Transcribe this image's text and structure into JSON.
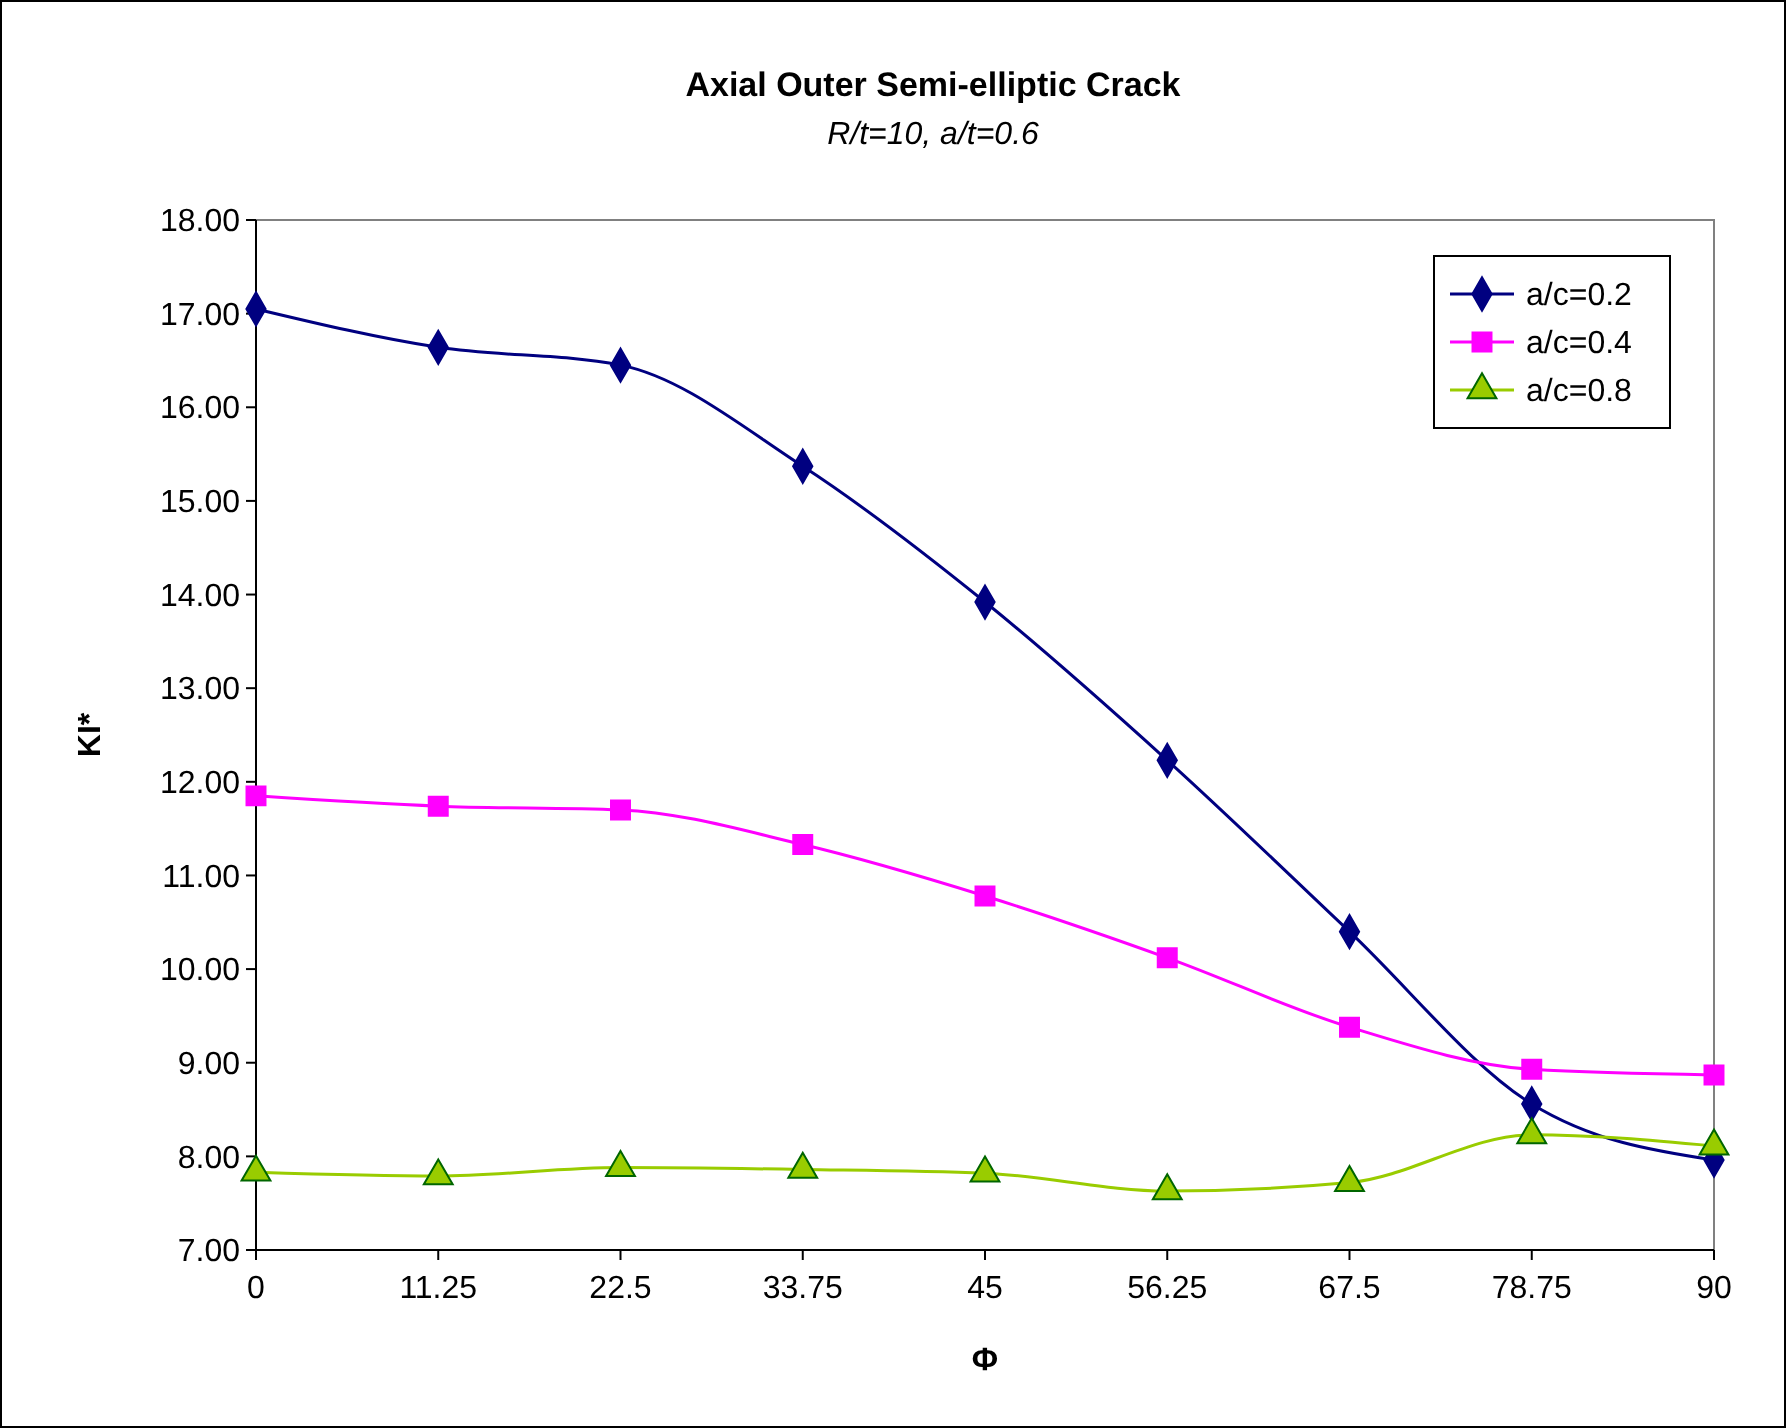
{
  "chart_data": {
    "type": "line",
    "title": "Axial Outer Semi-elliptic Crack",
    "subtitle": "R/t=10, a/t=0.6",
    "xlabel": "Φ",
    "ylabel": "KI*",
    "x": [
      0,
      11.25,
      22.5,
      33.75,
      45,
      56.25,
      67.5,
      78.75,
      90
    ],
    "xlim": [
      0,
      90
    ],
    "xticks": [
      0,
      11.25,
      22.5,
      33.75,
      45,
      56.25,
      67.5,
      78.75,
      90
    ],
    "ylim": [
      7,
      18
    ],
    "yticks": [
      {
        "value": 7,
        "label": "7.00"
      },
      {
        "value": 8,
        "label": "8.00"
      },
      {
        "value": 9,
        "label": "9.00"
      },
      {
        "value": 10,
        "label": "10.00"
      },
      {
        "value": 11,
        "label": "11.00"
      },
      {
        "value": 12,
        "label": "12.00"
      },
      {
        "value": 13,
        "label": "13.00"
      },
      {
        "value": 14,
        "label": "14.00"
      },
      {
        "value": 15,
        "label": "15.00"
      },
      {
        "value": 16,
        "label": "16.00"
      },
      {
        "value": 17,
        "label": "17.00"
      },
      {
        "value": 18,
        "label": "18.00"
      }
    ],
    "grid": false,
    "legend": "top right",
    "series": [
      {
        "name": "a/c=0.2",
        "color": "#000080",
        "marker": "diamond",
        "values": [
          17.05,
          16.64,
          16.45,
          15.37,
          13.92,
          12.23,
          10.4,
          8.56,
          7.96
        ]
      },
      {
        "name": "a/c=0.4",
        "color": "#ff00ff",
        "marker": "square",
        "values": [
          11.85,
          11.74,
          11.7,
          11.33,
          10.78,
          10.12,
          9.38,
          8.93,
          8.87
        ]
      },
      {
        "name": "a/c=0.8",
        "color": "#99cc00",
        "marker": "triangle",
        "values": [
          7.83,
          7.79,
          7.88,
          7.86,
          7.82,
          7.63,
          7.72,
          8.23,
          8.11
        ]
      }
    ]
  }
}
